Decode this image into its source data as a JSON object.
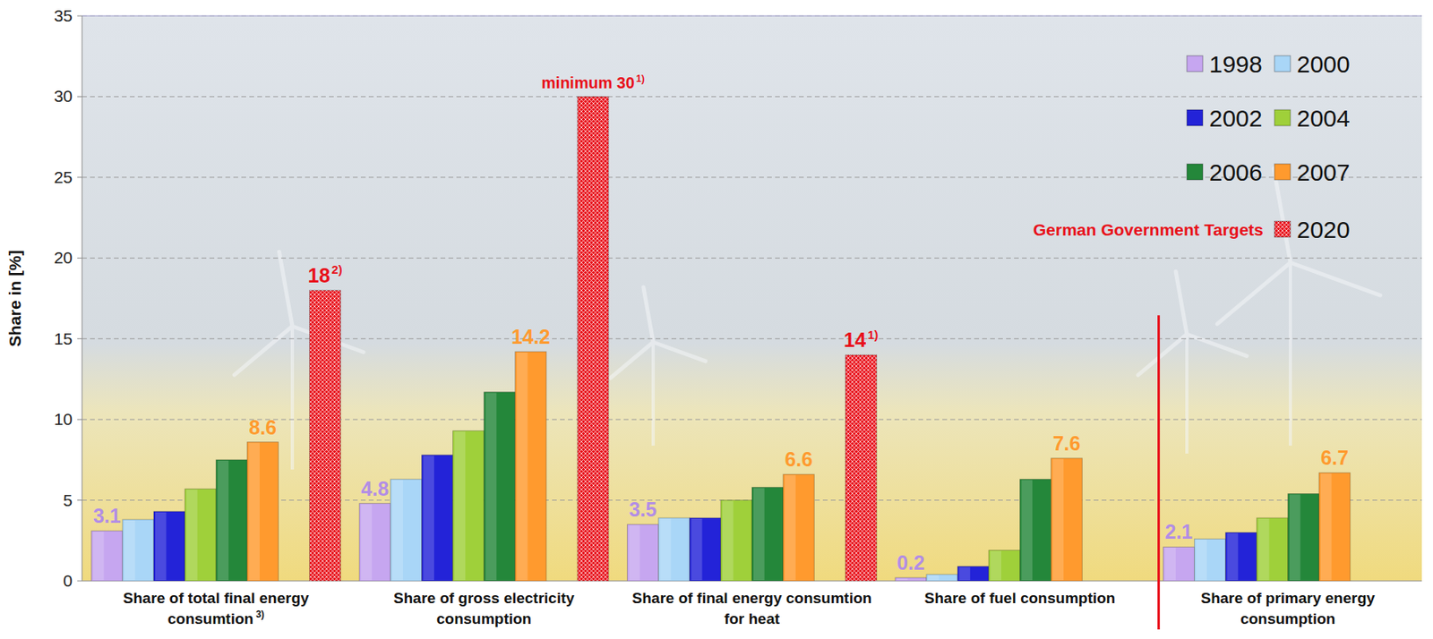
{
  "chart_data": {
    "type": "bar",
    "y_label": "Share in [%]",
    "categories": [
      "Share of total final energy consumtion",
      "Share of gross electricity consumption",
      "Share of final energy consumtion for heat",
      "Share of fuel consumption",
      "Share of primary energy consumption"
    ],
    "category_notes": [
      "3)",
      null,
      null,
      null,
      null
    ],
    "series": [
      {
        "name": "1998",
        "color": "#c6a6f0",
        "values": [
          3.1,
          4.8,
          3.5,
          0.2,
          2.1
        ],
        "data_labels": true
      },
      {
        "name": "2000",
        "color": "#a9d6f7",
        "values": [
          3.8,
          6.3,
          3.9,
          0.4,
          2.6
        ],
        "data_labels": false
      },
      {
        "name": "2002",
        "color": "#2323d8",
        "values": [
          4.3,
          7.8,
          3.9,
          0.9,
          3.0
        ],
        "data_labels": false
      },
      {
        "name": "2004",
        "color": "#9fd03a",
        "values": [
          5.7,
          9.3,
          5.0,
          1.9,
          3.9
        ],
        "data_labels": false
      },
      {
        "name": "2006",
        "color": "#24873a",
        "values": [
          7.5,
          11.7,
          5.8,
          6.3,
          5.4
        ],
        "data_labels": false
      },
      {
        "name": "2007",
        "color": "#ff9a2e",
        "values": [
          8.6,
          14.2,
          6.6,
          7.6,
          6.7
        ],
        "data_labels": true
      },
      {
        "name": "2020",
        "color": "#e8101a",
        "values": [
          18,
          30,
          14,
          null,
          null
        ],
        "data_labels": true,
        "marker": "crosshatch",
        "value_labels": [
          "18",
          "minimum 30",
          "14",
          null,
          null
        ],
        "value_notes": [
          "2)",
          "1)",
          "1)",
          null,
          null
        ]
      }
    ],
    "annotations": [
      {
        "text": "German Government Targets"
      }
    ],
    "ylim": [
      0,
      35
    ],
    "yticks": [
      0,
      5,
      10,
      15,
      20,
      25,
      30,
      35
    ],
    "grid": true,
    "legend": "top-right"
  }
}
